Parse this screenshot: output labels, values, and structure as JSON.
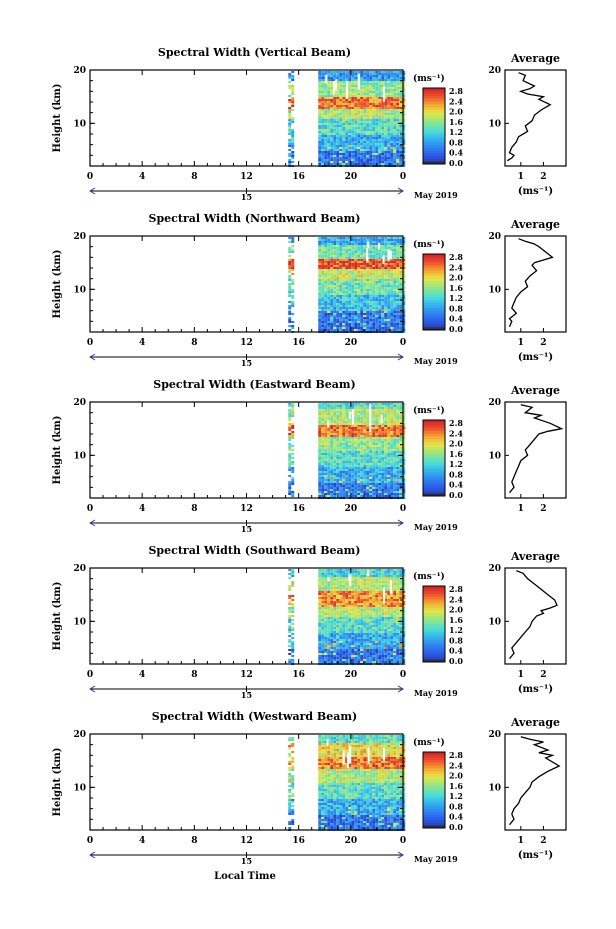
{
  "figure": {
    "xlabel": "Local Time",
    "date_label": "May 2019"
  },
  "chart_data": [
    {
      "type": "heatmap",
      "title": "Spectral Width (Vertical Beam)",
      "ylabel": "Height (km)",
      "yticks": [
        "20",
        "10"
      ],
      "xticks": [
        "0",
        "4",
        "8",
        "12",
        "16",
        "20",
        "0"
      ],
      "day_marker": "15",
      "xlim": [
        0,
        24
      ],
      "ylim": [
        2,
        20
      ],
      "colorbar_unit": "(ms⁻¹)",
      "colorbar_ticks": [
        "2.8",
        "2.4",
        "2.0",
        "1.6",
        "1.2",
        "0.8",
        "0.4",
        "0.0"
      ],
      "data_gaps_hours": [
        [
          0,
          15.2
        ],
        [
          15.6,
          17.5
        ]
      ]
    },
    {
      "type": "line",
      "title": "Average",
      "xlabel": "(ms⁻¹)",
      "xticks": [
        "1",
        "2"
      ],
      "yticks": [
        "20",
        "10"
      ],
      "ylim": [
        2,
        20
      ],
      "series": [
        {
          "x": [
            0.9,
            1.2,
            1.1,
            1.6,
            1.4,
            1.0,
            1.3,
            2.0,
            1.8,
            2.3,
            1.9,
            1.6,
            1.5,
            1.2,
            1.3,
            0.9,
            0.8,
            0.6,
            0.5,
            0.7,
            0.6,
            0.4
          ],
          "y": [
            19.5,
            19,
            18,
            17,
            16.5,
            16,
            15.5,
            15,
            14.5,
            13.5,
            12.5,
            11.5,
            10.5,
            9.5,
            8.5,
            7.5,
            6.5,
            5.5,
            4.5,
            4,
            3.5,
            3
          ]
        }
      ]
    },
    {
      "type": "heatmap",
      "title": "Spectral Width (Northward Beam)",
      "ylabel": "Height (km)",
      "yticks": [
        "20",
        "10"
      ],
      "xticks": [
        "0",
        "4",
        "8",
        "12",
        "16",
        "20",
        "0"
      ],
      "day_marker": "15",
      "xlim": [
        0,
        24
      ],
      "ylim": [
        2,
        20
      ],
      "colorbar_unit": "(ms⁻¹)",
      "colorbar_ticks": [
        "2.8",
        "2.4",
        "2.0",
        "1.6",
        "1.2",
        "0.8",
        "0.4",
        "0.0"
      ],
      "data_gaps_hours": [
        [
          0,
          15.2
        ],
        [
          15.6,
          17.5
        ]
      ]
    },
    {
      "type": "line",
      "title": "Average",
      "xlabel": "(ms⁻¹)",
      "xticks": [
        "1",
        "2"
      ],
      "yticks": [
        "20",
        "10"
      ],
      "ylim": [
        2,
        20
      ],
      "series": [
        {
          "x": [
            0.9,
            1.2,
            1.6,
            1.8,
            2.1,
            2.4,
            2.0,
            1.6,
            1.5,
            1.7,
            1.4,
            1.2,
            1.3,
            1.0,
            0.8,
            0.7,
            0.6,
            0.8,
            0.5,
            0.6,
            0.5
          ],
          "y": [
            19.5,
            19,
            18.5,
            18,
            17,
            16,
            15.5,
            15,
            14.5,
            13.5,
            12.5,
            11.5,
            10.5,
            9.5,
            8.5,
            7.5,
            6.5,
            5.5,
            4.5,
            4,
            3
          ]
        }
      ]
    },
    {
      "type": "heatmap",
      "title": "Spectral Width (Eastward Beam)",
      "ylabel": "Height (km)",
      "yticks": [
        "20",
        "10"
      ],
      "xticks": [
        "0",
        "4",
        "8",
        "12",
        "16",
        "20",
        "0"
      ],
      "day_marker": "15",
      "xlim": [
        0,
        24
      ],
      "ylim": [
        2,
        20
      ],
      "colorbar_unit": "(ms⁻¹)",
      "colorbar_ticks": [
        "2.8",
        "2.4",
        "2.0",
        "1.6",
        "1.2",
        "0.8",
        "0.4",
        "0.0"
      ],
      "data_gaps_hours": [
        [
          0,
          15.2
        ],
        [
          15.6,
          17.5
        ]
      ]
    },
    {
      "type": "line",
      "title": "Average",
      "xlabel": "",
      "xticks": [
        "1",
        "2"
      ],
      "yticks": [
        "20",
        "10"
      ],
      "ylim": [
        2,
        20
      ],
      "series": [
        {
          "x": [
            1.0,
            1.5,
            1.2,
            1.9,
            1.6,
            2.3,
            2.8,
            2.2,
            1.8,
            1.6,
            1.4,
            1.2,
            1.3,
            1.0,
            0.9,
            0.8,
            0.7,
            0.6,
            0.7,
            0.5
          ],
          "y": [
            19.5,
            19,
            18,
            17.5,
            17,
            16,
            15,
            14.5,
            14,
            13,
            12,
            11,
            10,
            9,
            8,
            7,
            6,
            5,
            4,
            3
          ]
        }
      ]
    },
    {
      "type": "heatmap",
      "title": "Spectral Width (Southward Beam)",
      "ylabel": "Height (km)",
      "yticks": [
        "20",
        "10"
      ],
      "xticks": [
        "0",
        "4",
        "8",
        "12",
        "16",
        "20",
        "0"
      ],
      "day_marker": "15",
      "xlim": [
        0,
        24
      ],
      "ylim": [
        2,
        20
      ],
      "colorbar_unit": "(ms⁻¹)",
      "colorbar_ticks": [
        "2.8",
        "2.4",
        "2.0",
        "1.6",
        "1.2",
        "0.8",
        "0.4",
        "0.0"
      ],
      "data_gaps_hours": [
        [
          0,
          15.2
        ],
        [
          15.6,
          17.5
        ]
      ]
    },
    {
      "type": "line",
      "title": "Average",
      "xlabel": "(ms⁻¹)",
      "xticks": [
        "1",
        "2"
      ],
      "yticks": [
        "20",
        "10"
      ],
      "ylim": [
        2,
        20
      ],
      "series": [
        {
          "x": [
            0.8,
            1.1,
            1.3,
            1.6,
            1.9,
            2.2,
            2.5,
            2.6,
            2.3,
            1.9,
            2.0,
            1.7,
            1.5,
            1.4,
            1.2,
            1.0,
            0.8,
            0.6,
            0.7,
            0.5
          ],
          "y": [
            19.5,
            19,
            18,
            17,
            16,
            15,
            14,
            13,
            12.5,
            12,
            11.5,
            11,
            10,
            9,
            8,
            7,
            6,
            5,
            4,
            3
          ]
        }
      ]
    },
    {
      "type": "heatmap",
      "title": "Spectral Width (Westward Beam)",
      "ylabel": "Height (km)",
      "yticks": [
        "20",
        "10"
      ],
      "xticks": [
        "0",
        "4",
        "8",
        "12",
        "16",
        "20",
        "0"
      ],
      "day_marker": "15",
      "xlim": [
        0,
        24
      ],
      "ylim": [
        2,
        20
      ],
      "colorbar_unit": "(ms⁻¹)",
      "colorbar_ticks": [
        "2.8",
        "2.4",
        "2.0",
        "1.6",
        "1.2",
        "0.8",
        "0.4",
        "0.0"
      ],
      "data_gaps_hours": [
        [
          0,
          15.2
        ],
        [
          15.6,
          17.5
        ]
      ]
    },
    {
      "type": "line",
      "title": "Average",
      "xlabel": "(ms⁻¹)",
      "xticks": [
        "1",
        "2"
      ],
      "yticks": [
        "20",
        "10"
      ],
      "ylim": [
        2,
        20
      ],
      "series": [
        {
          "x": [
            1.0,
            1.4,
            2.0,
            1.6,
            2.2,
            1.8,
            2.4,
            2.1,
            2.7,
            2.2,
            1.8,
            1.5,
            1.4,
            1.2,
            1.0,
            0.9,
            0.7,
            0.6,
            0.7,
            0.5
          ],
          "y": [
            19.5,
            19,
            18.5,
            18,
            17,
            16.5,
            16,
            15.5,
            14,
            13,
            12,
            11,
            10,
            9,
            8,
            7,
            6,
            5,
            4,
            3
          ]
        }
      ]
    }
  ]
}
